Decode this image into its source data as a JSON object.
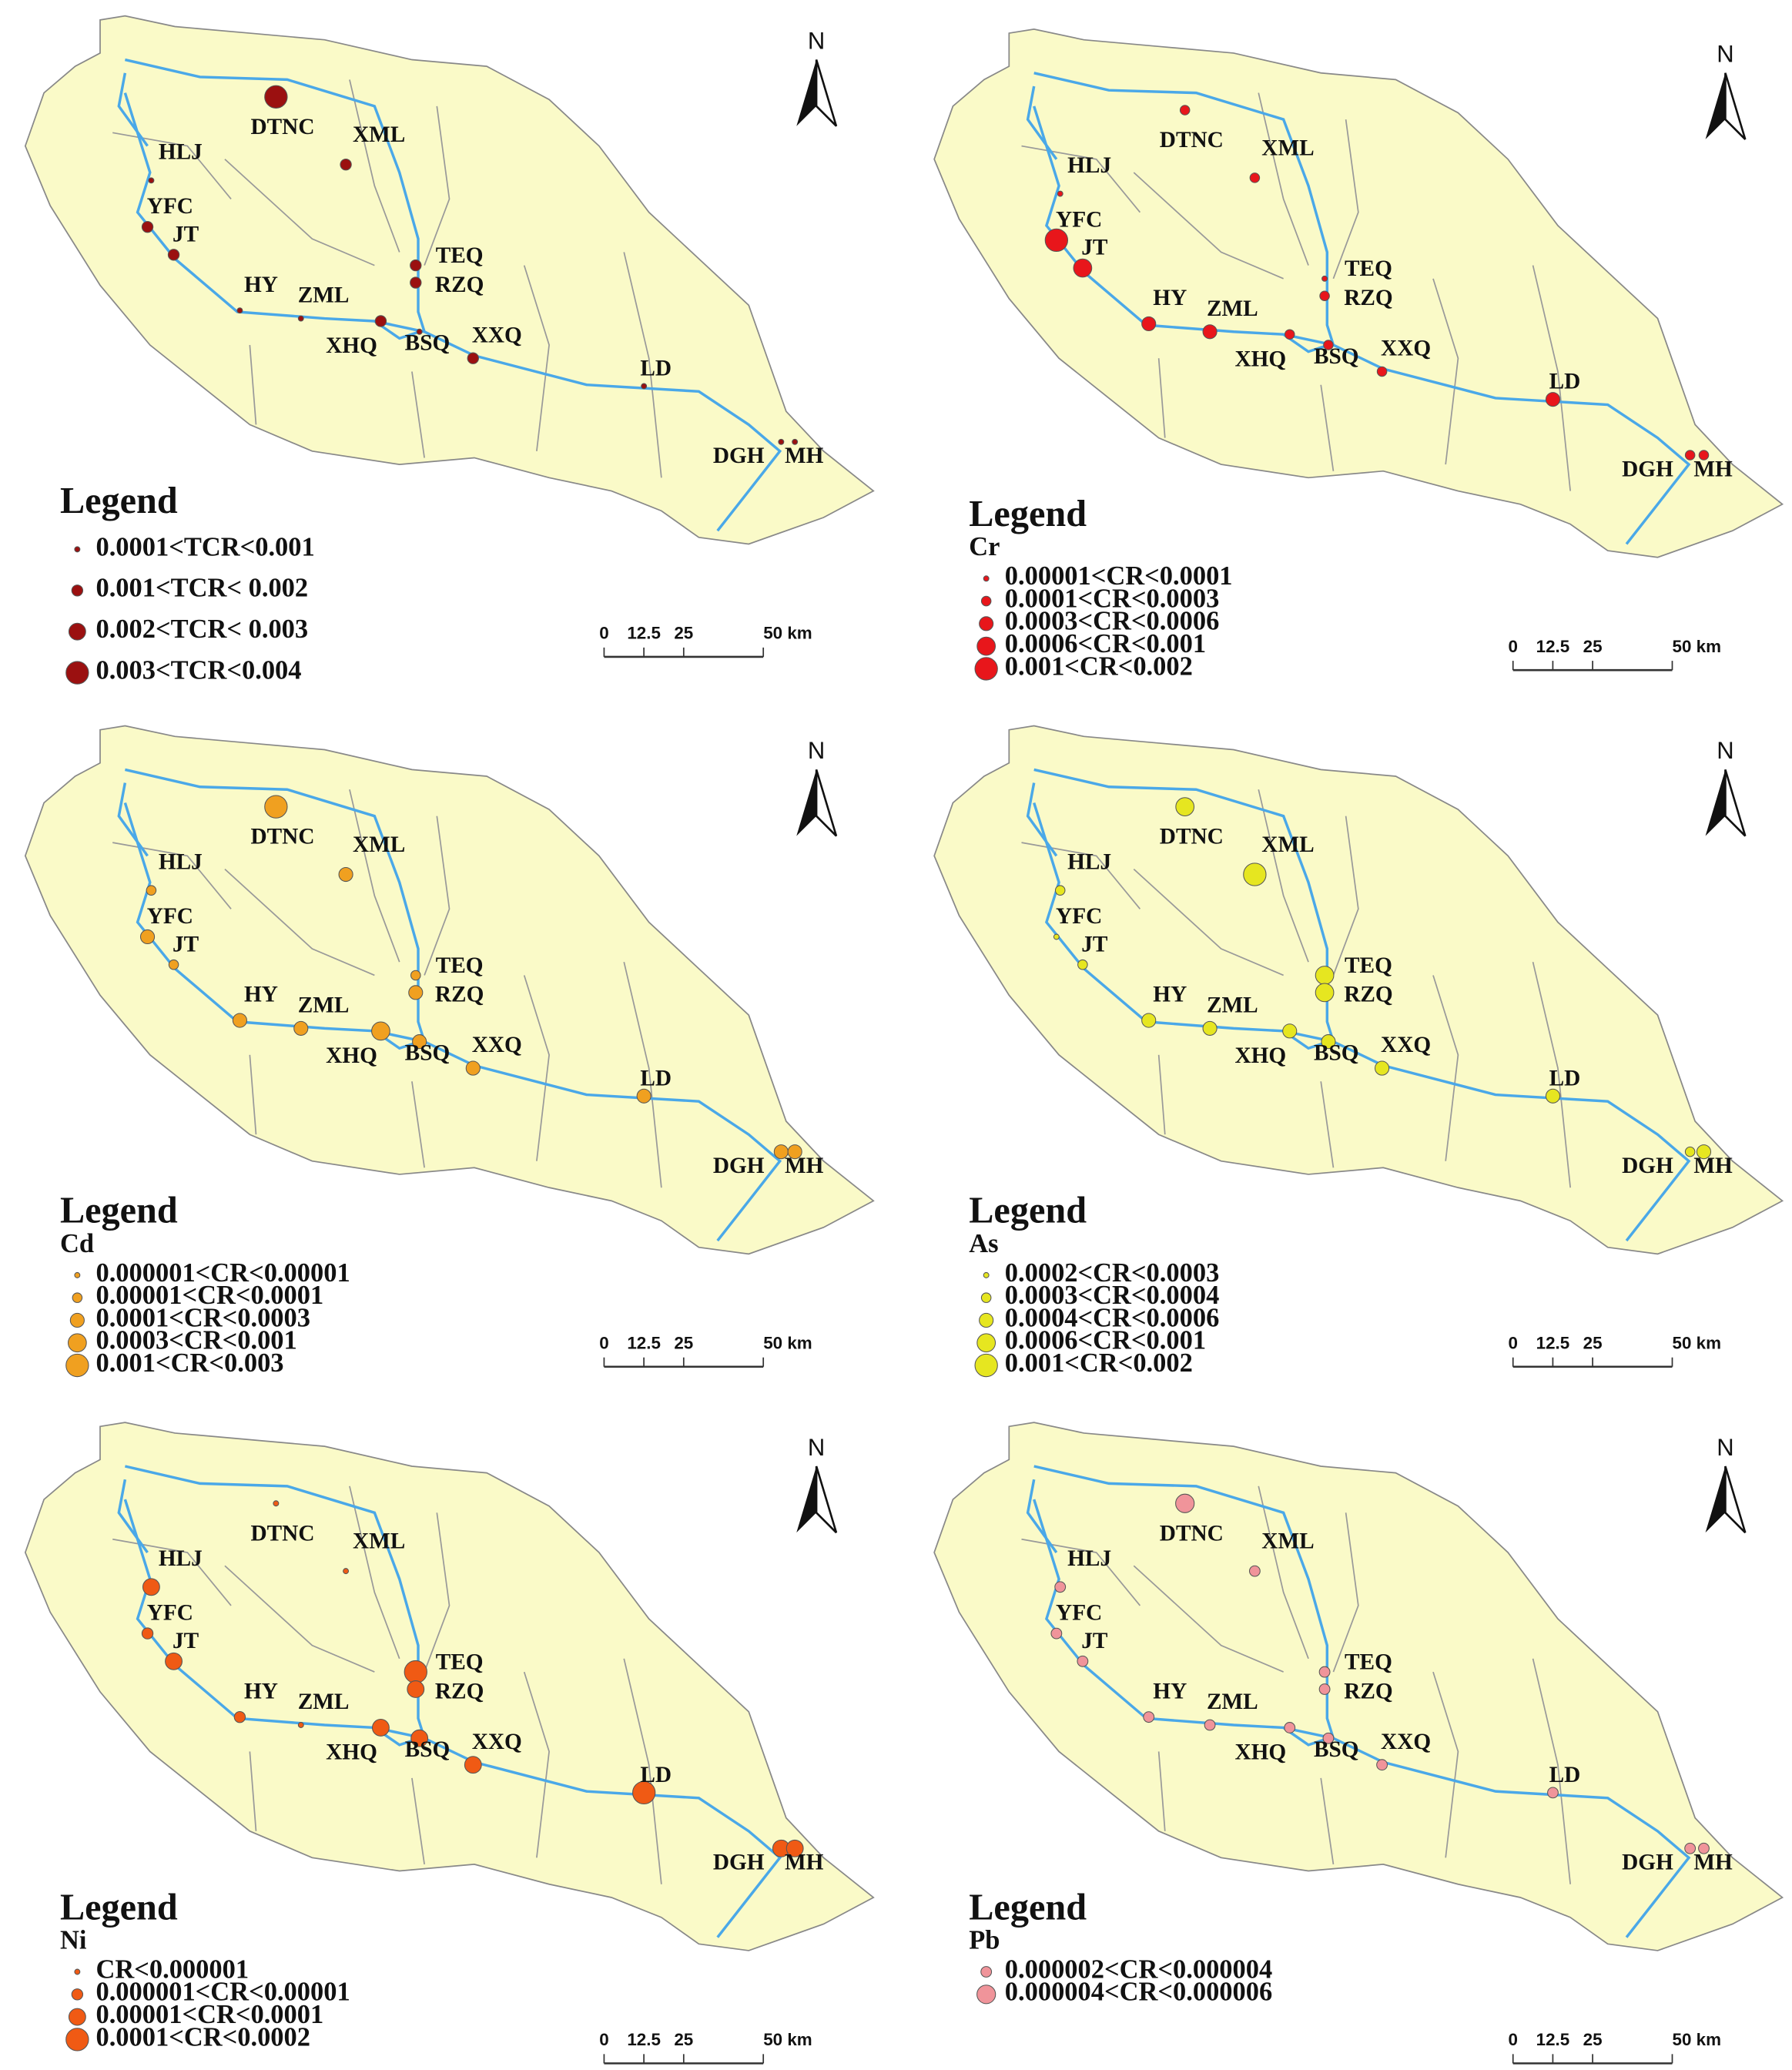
{
  "north": "N",
  "legend_title": "Legend",
  "scale_labels": [
    "0",
    "12.5",
    "25",
    "50 km"
  ],
  "panels": [
    {
      "color": "#9b1010",
      "legend": [
        "0.0001<TCR<0.001",
        "0.001<TCR< 0.002",
        "0.002<TCR< 0.003",
        "0.003<TCR<0.004"
      ],
      "sites": [
        {
          "name": "DTNC",
          "class": 3
        },
        {
          "name": "XML",
          "class": 1
        },
        {
          "name": "HLJ",
          "class": 0
        },
        {
          "name": "YFC",
          "class": 1
        },
        {
          "name": "JT",
          "class": 1
        },
        {
          "name": "TEQ",
          "class": 1
        },
        {
          "name": "RZQ",
          "class": 1
        },
        {
          "name": "HY",
          "class": 0
        },
        {
          "name": "ZML",
          "class": 0
        },
        {
          "name": "XHQ",
          "class": 1
        },
        {
          "name": "BSQ",
          "class": 0
        },
        {
          "name": "XXQ",
          "class": 1
        },
        {
          "name": "LD",
          "class": 0
        },
        {
          "name": "DGH",
          "class": 0
        },
        {
          "name": "MH",
          "class": 0
        }
      ]
    },
    {
      "color": "#e8161b",
      "subtitle": "Cr",
      "legend": [
        "0.00001<CR<0.0001",
        "0.0001<CR<0.0003",
        "0.0003<CR<0.0006",
        "0.0006<CR<0.001",
        "0.001<CR<0.002"
      ],
      "sites": [
        {
          "name": "DTNC",
          "class": 1
        },
        {
          "name": "XML",
          "class": 1
        },
        {
          "name": "HLJ",
          "class": 0
        },
        {
          "name": "YFC",
          "class": 4
        },
        {
          "name": "JT",
          "class": 3
        },
        {
          "name": "TEQ",
          "class": 0
        },
        {
          "name": "RZQ",
          "class": 1
        },
        {
          "name": "HY",
          "class": 2
        },
        {
          "name": "ZML",
          "class": 2
        },
        {
          "name": "XHQ",
          "class": 1
        },
        {
          "name": "BSQ",
          "class": 1
        },
        {
          "name": "XXQ",
          "class": 1
        },
        {
          "name": "LD",
          "class": 2
        },
        {
          "name": "DGH",
          "class": 1
        },
        {
          "name": "MH",
          "class": 1
        }
      ]
    },
    {
      "color": "#f0a020",
      "subtitle": "Cd",
      "legend": [
        "0.000001<CR<0.00001",
        "0.00001<CR<0.0001",
        "0.0001<CR<0.0003",
        "0.0003<CR<0.001",
        "0.001<CR<0.003"
      ],
      "sites": [
        {
          "name": "DTNC",
          "class": 4
        },
        {
          "name": "XML",
          "class": 2
        },
        {
          "name": "HLJ",
          "class": 1
        },
        {
          "name": "YFC",
          "class": 2
        },
        {
          "name": "JT",
          "class": 1
        },
        {
          "name": "TEQ",
          "class": 1
        },
        {
          "name": "RZQ",
          "class": 2
        },
        {
          "name": "HY",
          "class": 2
        },
        {
          "name": "ZML",
          "class": 2
        },
        {
          "name": "XHQ",
          "class": 3
        },
        {
          "name": "BSQ",
          "class": 2
        },
        {
          "name": "XXQ",
          "class": 2
        },
        {
          "name": "LD",
          "class": 2
        },
        {
          "name": "DGH",
          "class": 2
        },
        {
          "name": "MH",
          "class": 2
        }
      ]
    },
    {
      "color": "#e6e620",
      "subtitle": "As",
      "legend": [
        "0.0002<CR<0.0003",
        "0.0003<CR<0.0004",
        "0.0004<CR<0.0006",
        "0.0006<CR<0.001",
        "0.001<CR<0.002"
      ],
      "sites": [
        {
          "name": "DTNC",
          "class": 3
        },
        {
          "name": "XML",
          "class": 4
        },
        {
          "name": "HLJ",
          "class": 1
        },
        {
          "name": "YFC",
          "class": 0
        },
        {
          "name": "JT",
          "class": 1
        },
        {
          "name": "TEQ",
          "class": 3
        },
        {
          "name": "RZQ",
          "class": 3
        },
        {
          "name": "HY",
          "class": 2
        },
        {
          "name": "ZML",
          "class": 2
        },
        {
          "name": "XHQ",
          "class": 2
        },
        {
          "name": "BSQ",
          "class": 2
        },
        {
          "name": "XXQ",
          "class": 2
        },
        {
          "name": "LD",
          "class": 2
        },
        {
          "name": "DGH",
          "class": 1
        },
        {
          "name": "MH",
          "class": 2
        }
      ]
    },
    {
      "color": "#f05a14",
      "subtitle": "Ni",
      "legend": [
        "CR<0.000001",
        "0.000001<CR<0.00001",
        "0.00001<CR<0.0001",
        "0.0001<CR<0.0002"
      ],
      "sites": [
        {
          "name": "DTNC",
          "class": 0
        },
        {
          "name": "XML",
          "class": 0
        },
        {
          "name": "HLJ",
          "class": 2
        },
        {
          "name": "YFC",
          "class": 1
        },
        {
          "name": "JT",
          "class": 2
        },
        {
          "name": "TEQ",
          "class": 3
        },
        {
          "name": "RZQ",
          "class": 2
        },
        {
          "name": "HY",
          "class": 1
        },
        {
          "name": "ZML",
          "class": 0
        },
        {
          "name": "XHQ",
          "class": 2
        },
        {
          "name": "BSQ",
          "class": 2
        },
        {
          "name": "XXQ",
          "class": 2
        },
        {
          "name": "LD",
          "class": 3
        },
        {
          "name": "DGH",
          "class": 2
        },
        {
          "name": "MH",
          "class": 2
        }
      ]
    },
    {
      "color": "#f0949a",
      "subtitle": "Pb",
      "legend": [
        "0.000002<CR<0.000004",
        "0.000004<CR<0.000006"
      ],
      "sites": [
        {
          "name": "DTNC",
          "class": 1
        },
        {
          "name": "XML",
          "class": 0
        },
        {
          "name": "HLJ",
          "class": 0
        },
        {
          "name": "YFC",
          "class": 0
        },
        {
          "name": "JT",
          "class": 0
        },
        {
          "name": "TEQ",
          "class": 0
        },
        {
          "name": "RZQ",
          "class": 0
        },
        {
          "name": "HY",
          "class": 0
        },
        {
          "name": "ZML",
          "class": 0
        },
        {
          "name": "XHQ",
          "class": 0
        },
        {
          "name": "BSQ",
          "class": 0
        },
        {
          "name": "XXQ",
          "class": 0
        },
        {
          "name": "LD",
          "class": 0
        },
        {
          "name": "DGH",
          "class": 0
        },
        {
          "name": "MH",
          "class": 0
        }
      ]
    }
  ]
}
